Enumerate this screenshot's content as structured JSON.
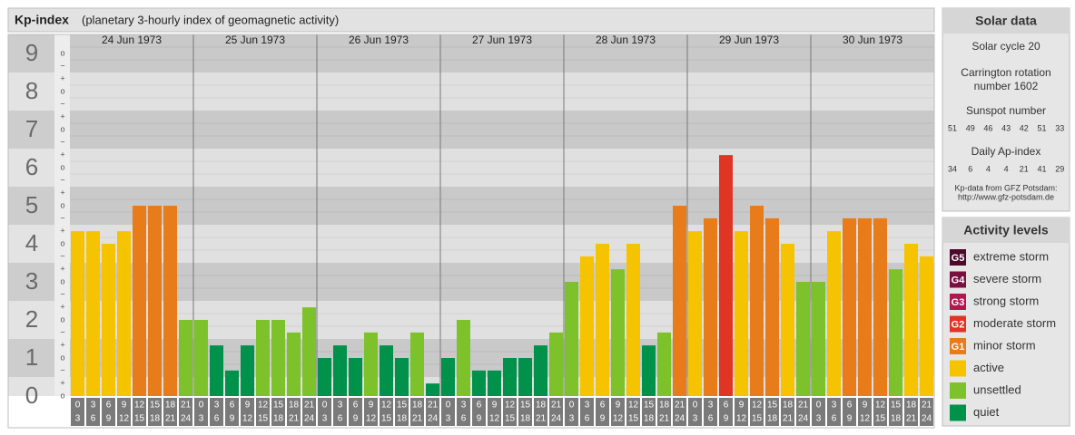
{
  "chart_data": {
    "type": "bar",
    "title": "Kp-index",
    "subtitle": "(planetary 3-hourly index of geomagnetic activity)",
    "categories": [
      "24 Jun 1973",
      "25 Jun 1973",
      "26 Jun 1973",
      "27 Jun 1973",
      "28 Jun 1973",
      "29 Jun 1973",
      "30 Jun 1973"
    ],
    "hour_labels_top": [
      "0",
      "3",
      "6",
      "9",
      "12",
      "15",
      "18",
      "21"
    ],
    "hour_labels_bottom": [
      "3",
      "6",
      "9",
      "12",
      "15",
      "18",
      "21",
      "24"
    ],
    "values": [
      [
        4.33,
        4.33,
        4,
        4.33,
        5,
        5,
        5,
        2
      ],
      [
        2,
        1.33,
        0.67,
        1.33,
        2,
        2,
        1.67,
        2.33
      ],
      [
        1,
        1.33,
        1,
        1.67,
        1.33,
        1,
        1.67,
        0.33
      ],
      [
        1,
        2,
        0.67,
        0.67,
        1,
        1,
        1.33,
        1.67
      ],
      [
        3,
        3.67,
        4,
        3.33,
        4,
        1.33,
        1.67,
        5
      ],
      [
        4.33,
        4.67,
        6.33,
        4.33,
        5,
        4.67,
        4,
        3
      ],
      [
        3,
        4.33,
        4.67,
        4.67,
        4.67,
        3.33,
        4,
        3.67
      ]
    ],
    "colors": [
      [
        "#f5c300",
        "#f5c300",
        "#f5c300",
        "#f5c300",
        "#e87b1a",
        "#e87b1a",
        "#e87b1a",
        "#7dc22b"
      ],
      [
        "#7dc22b",
        "#00914a",
        "#00914a",
        "#00914a",
        "#7dc22b",
        "#7dc22b",
        "#7dc22b",
        "#7dc22b"
      ],
      [
        "#00914a",
        "#00914a",
        "#00914a",
        "#7dc22b",
        "#00914a",
        "#00914a",
        "#7dc22b",
        "#00914a"
      ],
      [
        "#00914a",
        "#7dc22b",
        "#00914a",
        "#00914a",
        "#00914a",
        "#00914a",
        "#00914a",
        "#7dc22b"
      ],
      [
        "#7dc22b",
        "#f5c300",
        "#f5c300",
        "#7dc22b",
        "#f5c300",
        "#00914a",
        "#7dc22b",
        "#e87b1a"
      ],
      [
        "#f5c300",
        "#e87b1a",
        "#e03424",
        "#f5c300",
        "#e87b1a",
        "#e87b1a",
        "#f5c300",
        "#7dc22b"
      ],
      [
        "#7dc22b",
        "#f5c300",
        "#e87b1a",
        "#e87b1a",
        "#e87b1a",
        "#7dc22b",
        "#f5c300",
        "#f5c300"
      ]
    ],
    "ylim": [
      0,
      9.5
    ],
    "yticks": [
      0,
      1,
      2,
      3,
      4,
      5,
      6,
      7,
      8,
      9
    ],
    "minor_labels": [
      "−",
      "o",
      "+"
    ]
  },
  "solar_data": {
    "title": "Solar data",
    "cycle": "Solar cycle 20",
    "carrington": [
      "Carrington rotation",
      "number 1602"
    ],
    "sunspot_title": "Sunspot number",
    "sunspot": [
      51,
      49,
      46,
      43,
      42,
      51,
      33
    ],
    "ap_title": "Daily Ap-index",
    "ap": [
      34,
      6,
      4,
      4,
      21,
      41,
      29
    ],
    "source": [
      "Kp-data from GFZ Potsdam:",
      "http://www.gfz-potsdam.de"
    ]
  },
  "activity_levels": {
    "title": "Activity levels",
    "items": [
      {
        "code": "G5",
        "name": "extreme storm",
        "color": "#4d0a2a"
      },
      {
        "code": "G4",
        "name": "severe storm",
        "color": "#7a1040"
      },
      {
        "code": "G3",
        "name": "strong storm",
        "color": "#b01850"
      },
      {
        "code": "G2",
        "name": "moderate storm",
        "color": "#e03424"
      },
      {
        "code": "G1",
        "name": "minor storm",
        "color": "#e87b1a"
      },
      {
        "name": "active",
        "color": "#f5c300"
      },
      {
        "name": "unsettled",
        "color": "#7dc22b"
      },
      {
        "name": "quiet",
        "color": "#00914a"
      }
    ]
  }
}
